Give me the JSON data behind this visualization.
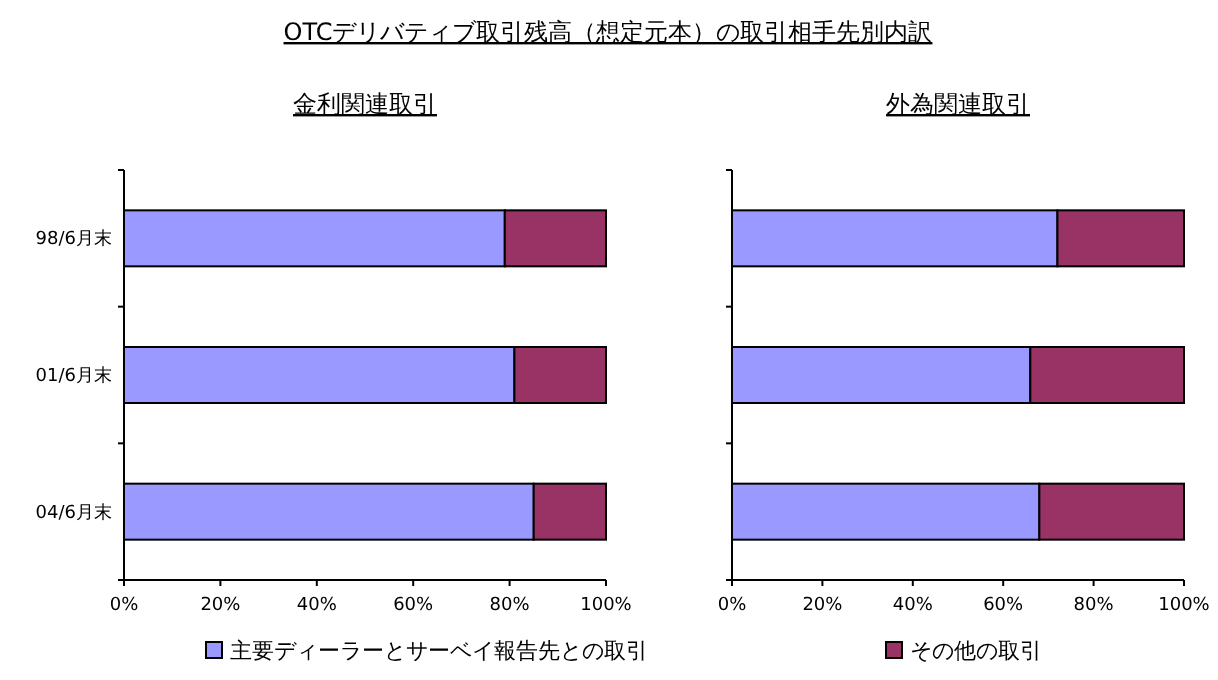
{
  "chart_data": [
    {
      "type": "bar",
      "orientation": "horizontal",
      "stacked": true,
      "title": "OTCデリバティブ取引残高（想定元本）の取引相手先別内訳",
      "subtitle": "金利関連取引",
      "categories": [
        "98/6月末",
        "01/6月末",
        "04/6月末"
      ],
      "series": [
        {
          "name": "主要ディーラーとサーベイ報告先との取引",
          "color": "#9999ff",
          "values": [
            79,
            81,
            85
          ]
        },
        {
          "name": "その他の取引",
          "color": "#993366",
          "values": [
            21,
            19,
            15
          ]
        }
      ],
      "xlim": [
        0,
        100
      ],
      "xticks": [
        {
          "value": 0,
          "label": "0%"
        },
        {
          "value": 20,
          "label": "20%"
        },
        {
          "value": 40,
          "label": "40%"
        },
        {
          "value": 60,
          "label": "60%"
        },
        {
          "value": 80,
          "label": "80%"
        },
        {
          "value": 100,
          "label": "100%"
        }
      ],
      "grid": false,
      "legend": "bottom"
    },
    {
      "type": "bar",
      "orientation": "horizontal",
      "stacked": true,
      "subtitle": "外為関連取引",
      "categories": [
        null,
        null,
        null
      ],
      "series": [
        {
          "color": "#9999ff",
          "values": [
            72,
            66,
            68
          ]
        },
        {
          "color": "#993366",
          "values": [
            28,
            34,
            32
          ]
        }
      ],
      "xlim": [
        0,
        100
      ],
      "xticks": [
        {
          "value": 0,
          "label": "0%"
        },
        {
          "value": 20,
          "label": "20%"
        },
        {
          "value": 40,
          "label": "40%"
        },
        {
          "value": 60,
          "label": "60%"
        },
        {
          "value": 80,
          "label": "80%"
        },
        {
          "value": 100,
          "label": "100%"
        }
      ],
      "tick_labels": "x",
      "grid": false
    }
  ]
}
